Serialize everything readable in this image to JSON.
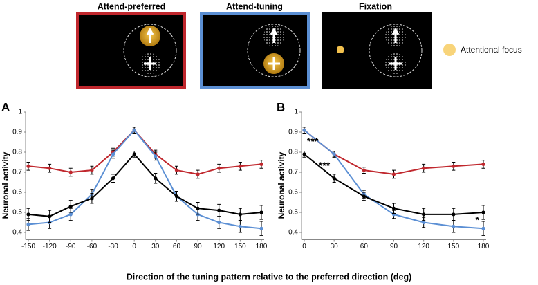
{
  "diagram": {
    "panels": [
      {
        "title": "Attend-preferred"
      },
      {
        "title": "Attend-tuning"
      },
      {
        "title": "Fixation"
      }
    ],
    "legend": "Attentional focus"
  },
  "x_label": "Direction of the tuning pattern relative to the preferred direction (deg)",
  "chart_data": [
    {
      "type": "line",
      "panel": "A",
      "y_label": "Neuronal activity",
      "x": [
        -150,
        -120,
        -90,
        -60,
        -30,
        0,
        30,
        60,
        90,
        120,
        150,
        180
      ],
      "xlim": [
        -150,
        180
      ],
      "xticks": [
        -150,
        -120,
        -90,
        -60,
        -30,
        0,
        30,
        60,
        90,
        120,
        150,
        180
      ],
      "ylim": [
        0.35,
        1
      ],
      "yticks": [
        0.4,
        0.5,
        0.6,
        0.7,
        0.8,
        0.9,
        1
      ],
      "series": [
        {
          "color": "#c0272d",
          "values": [
            0.73,
            0.72,
            0.7,
            0.71,
            0.8,
            0.91,
            0.79,
            0.71,
            0.69,
            0.72,
            0.73,
            0.74
          ],
          "errors": [
            0.02,
            0.02,
            0.02,
            0.02,
            0.02,
            0.015,
            0.02,
            0.02,
            0.02,
            0.02,
            0.02,
            0.02
          ]
        },
        {
          "color": "#5b8fd4",
          "values": [
            0.44,
            0.45,
            0.49,
            0.59,
            0.79,
            0.91,
            0.78,
            0.58,
            0.49,
            0.45,
            0.43,
            0.42
          ],
          "errors": [
            0.03,
            0.03,
            0.03,
            0.025,
            0.02,
            0.015,
            0.02,
            0.025,
            0.03,
            0.03,
            0.03,
            0.035
          ]
        },
        {
          "color": "#000000",
          "values": [
            0.49,
            0.48,
            0.53,
            0.57,
            0.67,
            0.79,
            0.67,
            0.58,
            0.52,
            0.51,
            0.49,
            0.5
          ],
          "errors": [
            0.03,
            0.03,
            0.03,
            0.025,
            0.02,
            0.015,
            0.025,
            0.025,
            0.03,
            0.03,
            0.03,
            0.035
          ]
        }
      ]
    },
    {
      "type": "line",
      "panel": "B",
      "y_label": "Neuronal activity",
      "x": [
        0,
        30,
        60,
        90,
        120,
        150,
        180
      ],
      "xlim": [
        0,
        180
      ],
      "xticks": [
        0,
        30,
        60,
        90,
        120,
        150,
        180
      ],
      "ylim": [
        0.35,
        1
      ],
      "yticks": [
        0.4,
        0.5,
        0.6,
        0.7,
        0.8,
        0.9,
        1
      ],
      "series": [
        {
          "color": "#c0272d",
          "values": [
            0.91,
            0.79,
            0.71,
            0.69,
            0.72,
            0.73,
            0.74
          ],
          "errors": [
            0.015,
            0.015,
            0.015,
            0.02,
            0.02,
            0.02,
            0.02
          ]
        },
        {
          "color": "#5b8fd4",
          "values": [
            0.91,
            0.79,
            0.59,
            0.49,
            0.45,
            0.43,
            0.42
          ],
          "errors": [
            0.015,
            0.015,
            0.02,
            0.02,
            0.025,
            0.03,
            0.035
          ]
        },
        {
          "color": "#000000",
          "values": [
            0.79,
            0.67,
            0.58,
            0.52,
            0.49,
            0.49,
            0.5
          ],
          "errors": [
            0.015,
            0.02,
            0.02,
            0.025,
            0.03,
            0.03,
            0.035
          ]
        }
      ],
      "annotations": [
        {
          "text": "***",
          "x": 0
        },
        {
          "text": "***",
          "x": 30
        },
        {
          "text": "*",
          "x": 180
        }
      ]
    }
  ]
}
